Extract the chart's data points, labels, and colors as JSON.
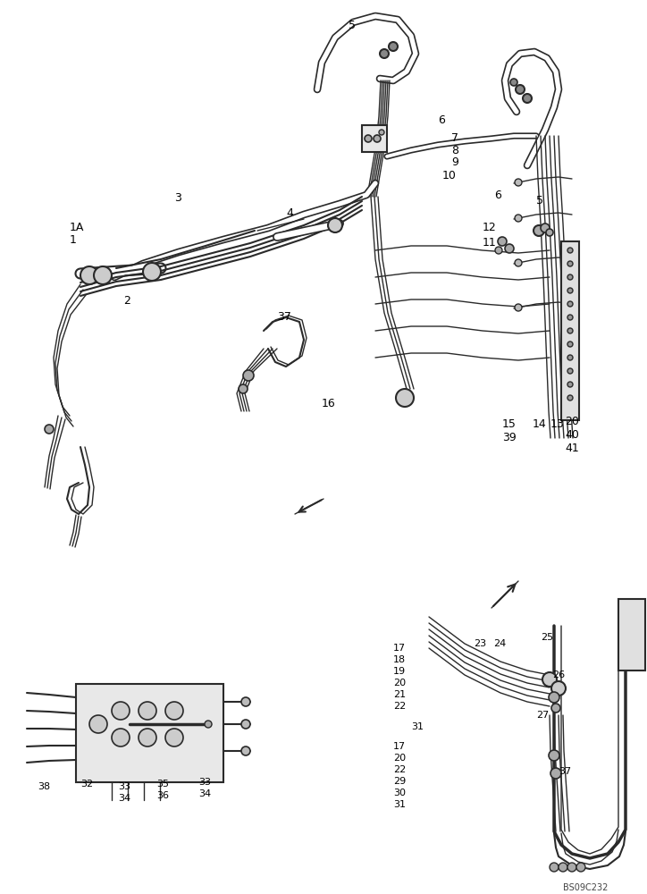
{
  "bg_color": "#ffffff",
  "line_color": "#2a2a2a",
  "fig_width": 7.24,
  "fig_height": 10.0,
  "dpi": 100,
  "watermark": "BS09C232"
}
